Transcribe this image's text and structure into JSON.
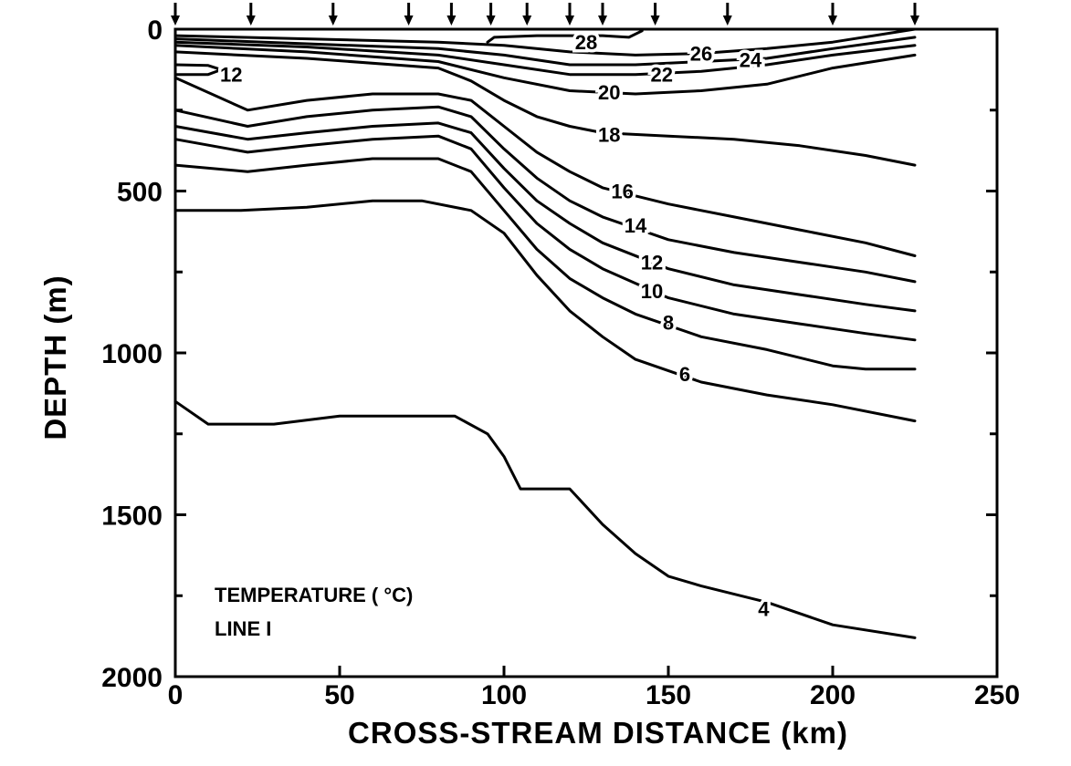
{
  "chart_data": {
    "type": "line",
    "xlabel": "CROSS-STREAM DISTANCE (km)",
    "ylabel": "DEPTH (m)",
    "xlim": [
      0,
      250
    ],
    "ylim": [
      2000,
      0
    ],
    "x_ticks": [
      "0",
      "50",
      "100",
      "150",
      "200",
      "250"
    ],
    "y_ticks": [
      "0",
      "500",
      "1000",
      "1500",
      "2000"
    ],
    "annotations": [
      "TEMPERATURE ( °C)",
      "LINE I"
    ],
    "station_positions_km": [
      0,
      23,
      48,
      71,
      84,
      96,
      107,
      120,
      130,
      146,
      168,
      200,
      225
    ],
    "series": [
      {
        "name": "28",
        "label_at": [
          125,
          40
        ],
        "x": [
          95,
          97,
          110,
          130,
          138,
          142
        ],
        "y": [
          40,
          25,
          20,
          20,
          25,
          5
        ]
      },
      {
        "name": "26",
        "label_at": [
          160,
          75
        ],
        "x": [
          0,
          40,
          80,
          100,
          120,
          140,
          160,
          180,
          200,
          225
        ],
        "y": [
          20,
          30,
          40,
          50,
          70,
          80,
          75,
          60,
          40,
          0
        ]
      },
      {
        "name": "24",
        "label_at": [
          175,
          95
        ],
        "x": [
          0,
          40,
          80,
          100,
          120,
          140,
          160,
          180,
          200,
          225
        ],
        "y": [
          30,
          45,
          60,
          80,
          110,
          110,
          100,
          90,
          60,
          25
        ]
      },
      {
        "name": "22",
        "label_at": [
          148,
          140
        ],
        "x": [
          0,
          40,
          80,
          100,
          120,
          140,
          160,
          180,
          200,
          225
        ],
        "y": [
          40,
          55,
          80,
          110,
          140,
          140,
          130,
          110,
          80,
          50
        ]
      },
      {
        "name": "20",
        "label_at": [
          132,
          195
        ],
        "x": [
          0,
          40,
          80,
          100,
          120,
          140,
          160,
          180,
          200,
          225
        ],
        "y": [
          50,
          70,
          100,
          150,
          190,
          200,
          190,
          170,
          120,
          80
        ]
      },
      {
        "name": "18",
        "label_at": [
          132,
          325
        ],
        "x": [
          0,
          40,
          80,
          90,
          100,
          110,
          120,
          130,
          150,
          170,
          190,
          210,
          225
        ],
        "y": [
          70,
          90,
          120,
          160,
          220,
          270,
          300,
          320,
          330,
          340,
          360,
          390,
          420
        ]
      },
      {
        "name": "16",
        "label_at": [
          136,
          500
        ],
        "x": [
          0,
          22,
          40,
          60,
          80,
          90,
          100,
          110,
          120,
          130,
          150,
          170,
          190,
          210,
          225
        ],
        "y": [
          150,
          250,
          220,
          200,
          200,
          220,
          300,
          380,
          440,
          490,
          540,
          580,
          620,
          660,
          700
        ]
      },
      {
        "name": "14",
        "label_at": [
          140,
          605
        ],
        "x": [
          0,
          22,
          40,
          60,
          80,
          90,
          100,
          110,
          120,
          130,
          150,
          170,
          190,
          210,
          225
        ],
        "y": [
          250,
          300,
          270,
          250,
          240,
          270,
          370,
          460,
          530,
          580,
          650,
          690,
          720,
          750,
          780
        ]
      },
      {
        "name": "12",
        "label_at": [
          145,
          720
        ],
        "x": [
          0,
          22,
          40,
          60,
          80,
          90,
          100,
          110,
          120,
          130,
          150,
          170,
          190,
          210,
          225
        ],
        "y": [
          300,
          340,
          320,
          300,
          290,
          320,
          430,
          530,
          600,
          660,
          740,
          790,
          820,
          850,
          870
        ]
      },
      {
        "name": "10",
        "label_at": [
          145,
          808
        ],
        "x": [
          0,
          22,
          40,
          60,
          80,
          90,
          100,
          110,
          120,
          130,
          150,
          170,
          190,
          210,
          225
        ],
        "y": [
          340,
          380,
          360,
          340,
          330,
          370,
          490,
          600,
          680,
          740,
          830,
          880,
          910,
          940,
          960
        ]
      },
      {
        "name": "8",
        "label_at": [
          150,
          905
        ],
        "x": [
          0,
          22,
          40,
          60,
          80,
          90,
          100,
          110,
          120,
          130,
          140,
          160,
          180,
          200,
          210,
          225
        ],
        "y": [
          420,
          440,
          420,
          400,
          400,
          440,
          560,
          680,
          770,
          830,
          880,
          950,
          990,
          1040,
          1050,
          1050
        ]
      },
      {
        "name": "6",
        "label_at": [
          155,
          1065
        ],
        "x": [
          0,
          20,
          40,
          60,
          75,
          90,
          100,
          110,
          120,
          130,
          140,
          160,
          180,
          200,
          225
        ],
        "y": [
          560,
          560,
          550,
          530,
          530,
          560,
          630,
          760,
          870,
          950,
          1020,
          1090,
          1130,
          1160,
          1210
        ]
      },
      {
        "name": "4",
        "label_at": [
          179,
          1790
        ],
        "x": [
          0,
          10,
          30,
          50,
          70,
          85,
          95,
          100,
          105,
          110,
          120,
          130,
          140,
          150,
          160,
          180,
          200,
          225
        ],
        "y": [
          1150,
          1220,
          1220,
          1195,
          1195,
          1195,
          1250,
          1320,
          1420,
          1420,
          1420,
          1530,
          1620,
          1690,
          1720,
          1770,
          1840,
          1880
        ]
      },
      {
        "name": "12",
        "label_at": [
          17,
          140
        ],
        "x": [
          0,
          10,
          14,
          10,
          0
        ],
        "y": [
          110,
          112,
          125,
          140,
          140
        ]
      }
    ]
  }
}
